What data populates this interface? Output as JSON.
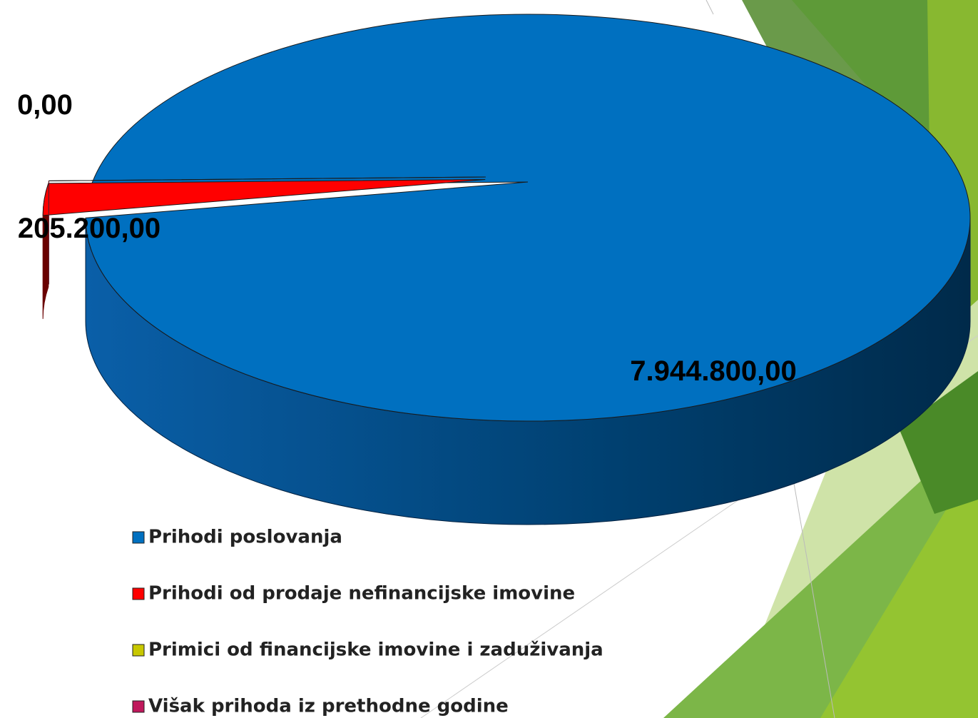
{
  "chart_data": {
    "type": "pie",
    "categories": [
      "Prihodi poslovanja",
      "Prihodi od prodaje nefinancijske imovine",
      "Primici od financijske imovine i zaduživanja",
      "Višak prihoda iz prethodne godine"
    ],
    "values": [
      7944800,
      205200,
      0,
      0
    ],
    "value_labels": [
      "7.944.800,00",
      "205.200,00",
      "0,00",
      null
    ],
    "colors": [
      "#0070c0",
      "#ff0000",
      "#c8c800",
      "#c0185c"
    ],
    "legend": "bottom"
  }
}
